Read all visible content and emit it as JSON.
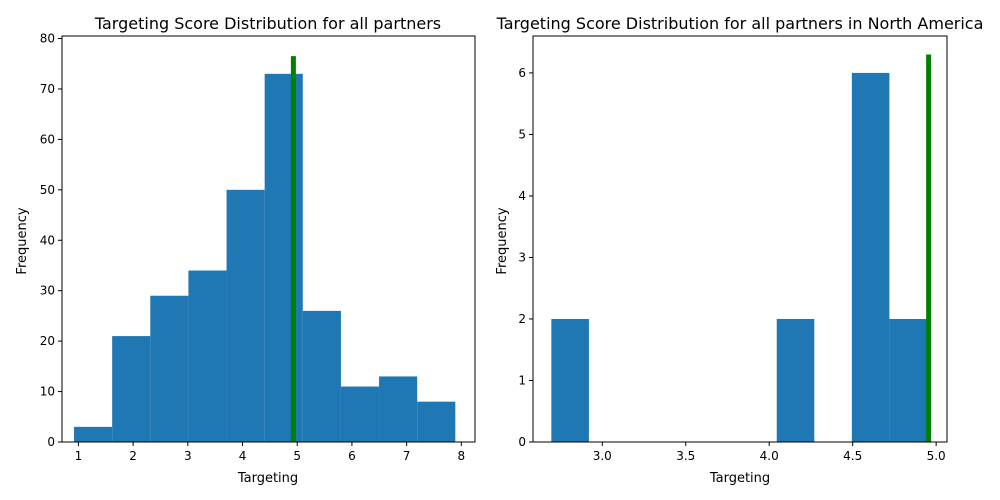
{
  "chart_data": [
    {
      "type": "bar",
      "title": "Targeting Score Distribution for all partners",
      "xlabel": "Targeting",
      "ylabel": "Frequency",
      "xlim": [
        0.7,
        8.25
      ],
      "ylim": [
        0,
        80.5
      ],
      "xticks": [
        1,
        2,
        3,
        4,
        5,
        6,
        7,
        8
      ],
      "xtick_labels": [
        "1",
        "2",
        "3",
        "4",
        "5",
        "6",
        "7",
        "8"
      ],
      "yticks": [
        0,
        10,
        20,
        30,
        40,
        50,
        60,
        70,
        80
      ],
      "ytick_labels": [
        "0",
        "10",
        "20",
        "30",
        "40",
        "50",
        "60",
        "70",
        "80"
      ],
      "bin_edges": [
        0.92,
        1.617,
        2.314,
        3.011,
        3.708,
        4.405,
        5.102,
        5.799,
        6.496,
        7.193,
        7.89
      ],
      "values": [
        3,
        21,
        29,
        34,
        50,
        73,
        26,
        11,
        13,
        8
      ],
      "bar_color": "#1f77b4",
      "marker_line": {
        "x": 4.93,
        "y_top": 76.5,
        "color": "#008000"
      }
    },
    {
      "type": "bar",
      "title": "Targeting Score Distribution for all partners in North America",
      "xlabel": "Targeting",
      "ylabel": "Frequency",
      "xlim": [
        2.585,
        5.065
      ],
      "ylim": [
        0,
        6.6
      ],
      "xticks": [
        3.0,
        3.5,
        4.0,
        4.5,
        5.0
      ],
      "xtick_labels": [
        "3.0",
        "3.5",
        "4.0",
        "4.5",
        "5.0"
      ],
      "yticks": [
        0,
        1,
        2,
        3,
        4,
        5,
        6
      ],
      "ytick_labels": [
        "0",
        "1",
        "2",
        "3",
        "4",
        "5",
        "6"
      ],
      "bin_edges": [
        2.695,
        2.92,
        3.145,
        3.37,
        3.595,
        3.82,
        4.045,
        4.27,
        4.495,
        4.72,
        4.945
      ],
      "values": [
        2,
        0,
        0,
        0,
        0,
        0,
        2,
        0,
        6,
        2
      ],
      "bar_color": "#1f77b4",
      "marker_line": {
        "x": 4.955,
        "y_top": 6.3,
        "color": "#008000"
      }
    }
  ]
}
